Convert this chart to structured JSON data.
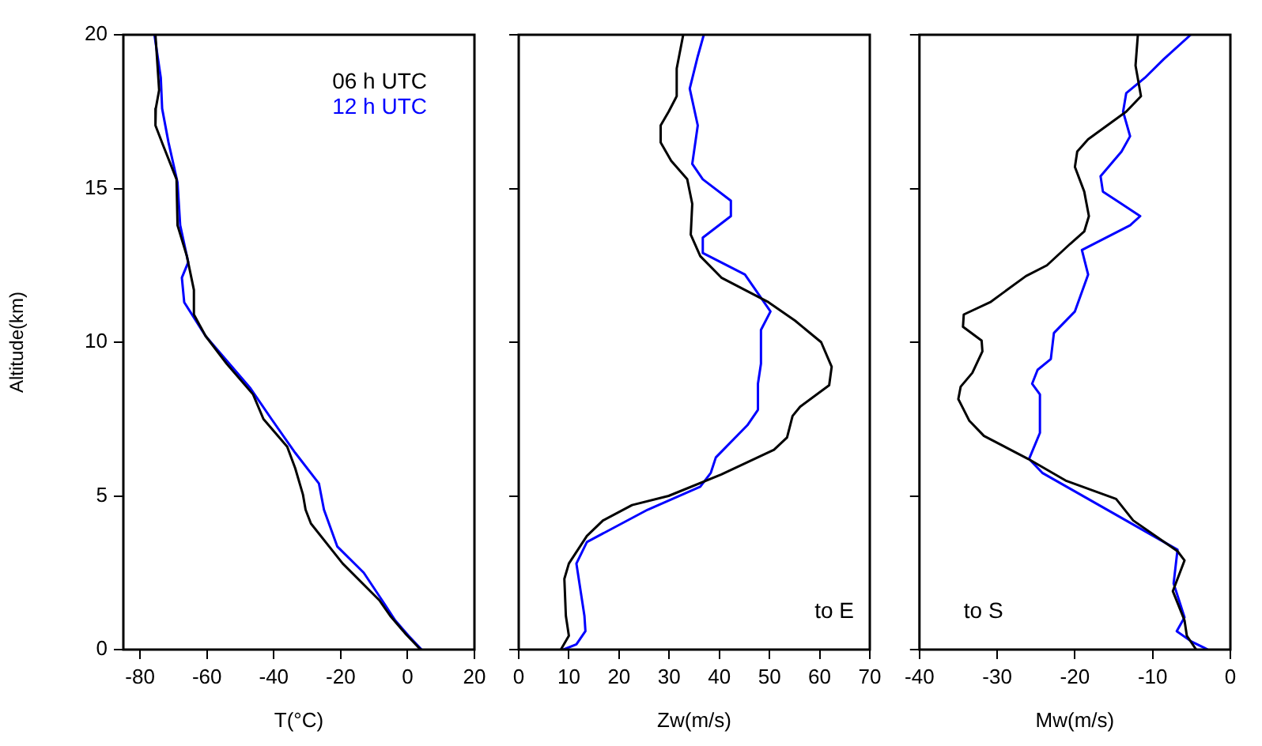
{
  "chart_data": [
    {
      "type": "line",
      "xlabel": "T(°C)",
      "ylabel": "Altitude(km)",
      "xlim": [
        -85,
        20
      ],
      "xticks": [
        -80,
        -60,
        -40,
        -20,
        0,
        20
      ],
      "ylim": [
        0,
        20
      ],
      "yticks": [
        0,
        5,
        10,
        15,
        20
      ],
      "grid": false,
      "legend": "top right",
      "marker": "none",
      "line_style": "solid",
      "series": [
        {
          "name": "06 h UTC",
          "color": "#000000",
          "x": [
            -75.4,
            -74.3,
            -75.3,
            -75.4,
            -73.1,
            -69.1,
            -68.8,
            -66,
            -63.9,
            -63.9,
            -60.4,
            -54.1,
            -46.2,
            -43.1,
            -36,
            -33.6,
            -31.3,
            -30.5,
            -28.9,
            -19.4,
            -8.4,
            -5.2,
            -0.5,
            3.9
          ],
          "values": [
            20,
            18.2,
            17.6,
            17.05,
            16.4,
            15.3,
            13.8,
            12.8,
            11.7,
            10.9,
            10.2,
            9.3,
            8.3,
            7.5,
            6.6,
            5.9,
            5.05,
            4.55,
            4.1,
            2.8,
            1.6,
            1.1,
            0.5,
            0
          ]
        },
        {
          "name": "12 h UTC",
          "color": "#0000ff",
          "x": [
            -75.7,
            -73.8,
            -73.4,
            -71.5,
            -68.8,
            -68,
            -65.6,
            -67.5,
            -66.8,
            -60.4,
            -47,
            -40.7,
            -33.6,
            -26.5,
            -25,
            -21,
            -13.1,
            -7.6,
            -3.7,
            0.3,
            4.2
          ],
          "values": [
            20,
            18.6,
            17.6,
            16.5,
            15.2,
            13.8,
            12.6,
            12.1,
            11.3,
            10.2,
            8.5,
            7.5,
            6.4,
            5.4,
            4.55,
            3.35,
            2.5,
            1.6,
            0.95,
            0.45,
            0
          ]
        }
      ]
    },
    {
      "type": "line",
      "xlabel": "Zw(m/s)",
      "xlim": [
        0,
        70
      ],
      "xticks": [
        0,
        10,
        20,
        30,
        40,
        50,
        60,
        70
      ],
      "ylim": [
        0,
        20
      ],
      "yticks": [
        0,
        5,
        10,
        15,
        20
      ],
      "tick_labels": "x",
      "grid": false,
      "marker": "none",
      "line_style": "solid",
      "annotations": [
        "to E"
      ],
      "series": [
        {
          "color": "#000000",
          "x": [
            32.8,
            31.5,
            31.5,
            29.9,
            28.3,
            28.3,
            30.4,
            33.6,
            34.6,
            34.3,
            36.2,
            40.4,
            49.8,
            55.1,
            60.3,
            62.4,
            61.9,
            56.1,
            54.6,
            53.5,
            50.9,
            40.4,
            29.9,
            22.6,
            16.8,
            13.6,
            10,
            9.1,
            9.4,
            10,
            8.4
          ],
          "values": [
            20,
            18.9,
            18,
            17.5,
            17.05,
            16.5,
            15.9,
            15.3,
            14.5,
            13.5,
            12.8,
            12.1,
            11.3,
            10.7,
            10,
            9.2,
            8.6,
            7.9,
            7.6,
            6.9,
            6.5,
            5.7,
            5,
            4.7,
            4.2,
            3.7,
            2.8,
            2.3,
            1.1,
            0.45,
            0
          ]
        },
        {
          "color": "#0000ff",
          "x": [
            36.9,
            35.7,
            34.1,
            35.7,
            34.6,
            36.7,
            42.3,
            42.3,
            36.7,
            36.7,
            45.1,
            50.2,
            48.3,
            48.3,
            47.7,
            47.7,
            45.6,
            39.3,
            38.3,
            36.2,
            25.7,
            13.6,
            11.5,
            13.1,
            13.3,
            11.5,
            8.9
          ],
          "values": [
            20,
            19.3,
            18.25,
            17.05,
            15.8,
            15.3,
            14.6,
            14.1,
            13.4,
            12.9,
            12.2,
            11,
            10.4,
            9.3,
            8.65,
            7.8,
            7.3,
            6.25,
            5.75,
            5.3,
            4.55,
            3.5,
            2.8,
            1.1,
            0.6,
            0.17,
            0
          ]
        }
      ]
    },
    {
      "type": "line",
      "xlabel": "Mw(m/s)",
      "xlim": [
        -40,
        0
      ],
      "xticks": [
        -40,
        -30,
        -20,
        -10,
        0
      ],
      "ylim": [
        0,
        20
      ],
      "yticks": [
        0,
        5,
        10,
        15,
        20
      ],
      "tick_labels": "x",
      "grid": false,
      "marker": "none",
      "line_style": "solid",
      "annotations": [
        "to S"
      ],
      "series": [
        {
          "color": "#000000",
          "x": [
            -11.9,
            -12.2,
            -11.5,
            -13.4,
            -18.3,
            -19.7,
            -20,
            -18.8,
            -18.2,
            -18.8,
            -20.6,
            -23.6,
            -26.3,
            -30.9,
            -34.3,
            -34.4,
            -32,
            -31.9,
            -33.2,
            -34.7,
            -35,
            -33.6,
            -31.7,
            -26,
            -21.2,
            -14.7,
            -12.5,
            -6.8,
            -5.9,
            -7.4,
            -5.9,
            -5.6,
            -4.4
          ],
          "values": [
            20,
            19,
            18,
            17.5,
            16.6,
            16.2,
            15.7,
            14.9,
            14.1,
            13.6,
            13.2,
            12.5,
            12.15,
            11.3,
            10.9,
            10.5,
            10.05,
            9.7,
            9,
            8.55,
            8.15,
            7.45,
            6.95,
            6.2,
            5.5,
            4.9,
            4.2,
            3.2,
            2.9,
            1.9,
            0.95,
            0.45,
            0
          ]
        },
        {
          "color": "#0000ff",
          "x": [
            -5.1,
            -8.6,
            -11,
            -13.4,
            -13.8,
            -12.9,
            -14,
            -16.7,
            -16.4,
            -11.6,
            -12.9,
            -19.1,
            -18.3,
            -20,
            -22.7,
            -23.1,
            -24.8,
            -25.5,
            -24.5,
            -24.5,
            -25.9,
            -24.2,
            -6.8,
            -7.3,
            -5.9,
            -6.9,
            -5,
            -2.9
          ],
          "values": [
            20,
            19.2,
            18.6,
            18.1,
            17.5,
            16.7,
            16.2,
            15.4,
            14.9,
            14.1,
            13.8,
            13,
            12.2,
            11,
            10.3,
            9.45,
            9.1,
            8.65,
            8.3,
            7.05,
            6.2,
            5.75,
            3.25,
            2.15,
            1.05,
            0.6,
            0.26,
            0
          ]
        }
      ]
    }
  ]
}
